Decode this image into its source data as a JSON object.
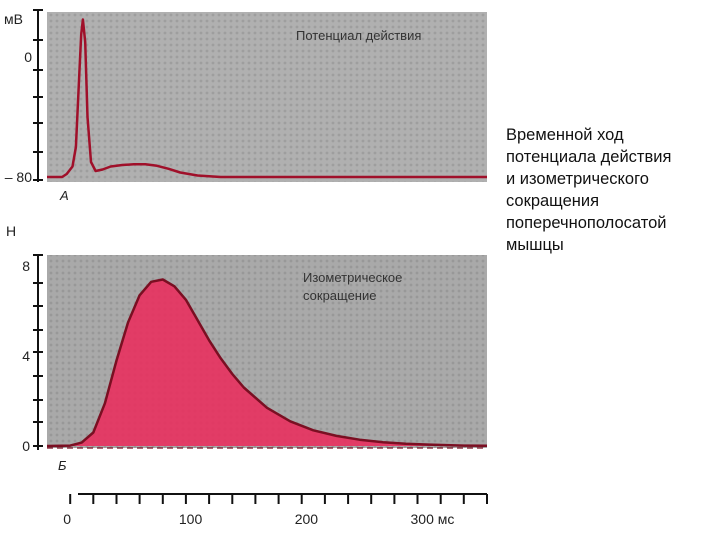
{
  "caption_lines": [
    "Временной ход",
    "потенциала действия",
    "и изометрического",
    "сокращения",
    "поперечнополосатой",
    "мышцы"
  ],
  "chart_data": [
    {
      "type": "line",
      "panel_label": "А",
      "title": "Потенциал действия",
      "ylabel": "мВ",
      "yticks": [
        "0",
        "– 80"
      ],
      "ytick_values": [
        0,
        -80
      ],
      "ylim": [
        -80,
        30
      ],
      "xlim": [
        -20,
        360
      ],
      "background": "#b0b0b0",
      "series_color": "#a0102a",
      "x": [
        -20,
        -7,
        -3,
        2,
        5,
        8,
        9.5,
        11,
        13,
        15,
        18,
        22,
        28,
        35,
        45,
        55,
        65,
        75,
        85,
        95,
        110,
        130,
        360
      ],
      "y": [
        -80,
        -80,
        -78,
        -73,
        -60,
        -10,
        15,
        25,
        10,
        -40,
        -70,
        -76,
        -75,
        -73,
        -72,
        -71.5,
        -71.5,
        -72.5,
        -74.5,
        -77,
        -79,
        -80,
        -80
      ]
    },
    {
      "type": "area",
      "panel_label": "Б",
      "title": "Изометрическое сокращение",
      "ylabel": "Н",
      "yticks": [
        "8",
        "4",
        "0"
      ],
      "ytick_values": [
        8,
        4,
        0
      ],
      "ylim": [
        0,
        8
      ],
      "xlim": [
        -20,
        360
      ],
      "xlabel": "",
      "xticks": [
        "0",
        "100",
        "200",
        "300 мс"
      ],
      "xtick_values": [
        0,
        100,
        200,
        300
      ],
      "background": "#a9a9a9",
      "fill_color": "#e8305e",
      "line_color": "#7a0f22",
      "x": [
        -20,
        0,
        10,
        20,
        30,
        40,
        50,
        60,
        70,
        80,
        90,
        100,
        110,
        120,
        130,
        140,
        150,
        170,
        190,
        210,
        230,
        250,
        270,
        290,
        310,
        340,
        360
      ],
      "y": [
        0,
        0.02,
        0.15,
        0.6,
        1.9,
        3.8,
        5.5,
        6.7,
        7.3,
        7.4,
        7.1,
        6.5,
        5.6,
        4.7,
        3.9,
        3.2,
        2.6,
        1.7,
        1.1,
        0.7,
        0.45,
        0.28,
        0.17,
        0.1,
        0.06,
        0.02,
        0.01
      ]
    }
  ]
}
